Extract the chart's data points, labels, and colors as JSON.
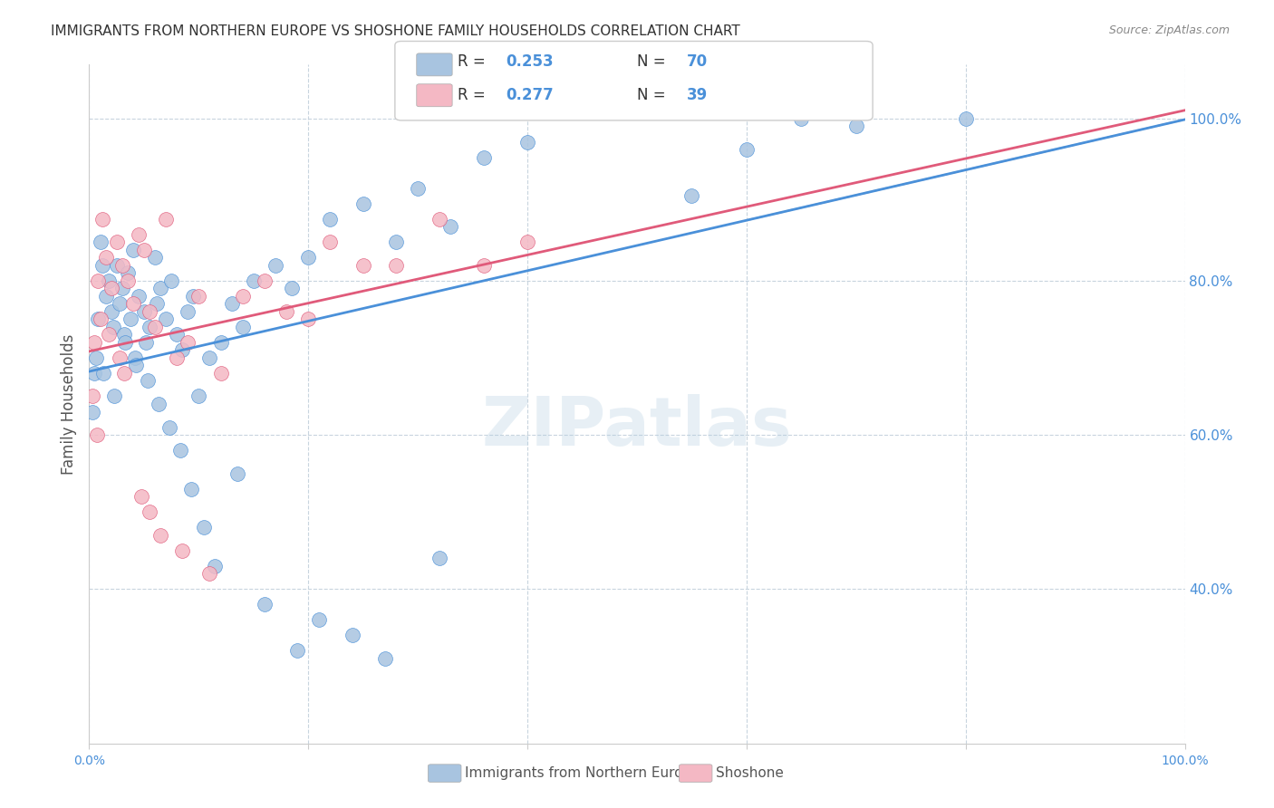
{
  "title": "IMMIGRANTS FROM NORTHERN EUROPE VS SHOSHONE FAMILY HOUSEHOLDS CORRELATION CHART",
  "source": "Source: ZipAtlas.com",
  "ylabel": "Family Households",
  "y_tick_vals": [
    101.0,
    80.0,
    60.0,
    40.0
  ],
  "y_tick_labels": [
    "100.0%",
    "80.0%",
    "60.0%",
    "40.0%"
  ],
  "watermark": "ZIPatlas",
  "legend_label1": "Immigrants from Northern Europe",
  "legend_label2": "Shoshone",
  "r1": "0.253",
  "n1": "70",
  "r2": "0.277",
  "n2": "39",
  "blue_fill": "#a8c4e0",
  "pink_fill": "#f4b8c4",
  "blue_edge": "#4a90d9",
  "pink_edge": "#e05a7a",
  "blue_line": "#4a90d9",
  "pink_line": "#e05a7a",
  "background_color": "#ffffff",
  "grid_color": "#c8d4de",
  "xlim": [
    0,
    100
  ],
  "ylim": [
    20,
    108
  ],
  "blue_x": [
    0.5,
    0.8,
    1.0,
    1.2,
    1.5,
    1.8,
    2.0,
    2.2,
    2.5,
    2.8,
    3.0,
    3.2,
    3.5,
    3.8,
    4.0,
    4.2,
    4.5,
    5.0,
    5.2,
    5.5,
    6.0,
    6.2,
    6.5,
    7.0,
    7.5,
    8.0,
    8.5,
    9.0,
    9.5,
    10.0,
    11.0,
    12.0,
    13.0,
    14.0,
    15.0,
    17.0,
    18.5,
    20.0,
    22.0,
    25.0,
    28.0,
    30.0,
    33.0,
    36.0,
    40.0,
    55.0,
    60.0,
    65.0,
    70.0,
    80.0,
    0.3,
    0.6,
    1.3,
    2.3,
    3.3,
    4.3,
    5.3,
    6.3,
    7.3,
    8.3,
    9.3,
    10.5,
    11.5,
    13.5,
    16.0,
    19.0,
    21.0,
    24.0,
    27.0,
    32.0
  ],
  "blue_y": [
    68.0,
    75.0,
    85.0,
    82.0,
    78.0,
    80.0,
    76.0,
    74.0,
    82.0,
    77.0,
    79.0,
    73.0,
    81.0,
    75.0,
    84.0,
    70.0,
    78.0,
    76.0,
    72.0,
    74.0,
    83.0,
    77.0,
    79.0,
    75.0,
    80.0,
    73.0,
    71.0,
    76.0,
    78.0,
    65.0,
    70.0,
    72.0,
    77.0,
    74.0,
    80.0,
    82.0,
    79.0,
    83.0,
    88.0,
    90.0,
    85.0,
    92.0,
    87.0,
    96.0,
    98.0,
    91.0,
    97.0,
    101.0,
    100.0,
    101.0,
    63.0,
    70.0,
    68.0,
    65.0,
    72.0,
    69.0,
    67.0,
    64.0,
    61.0,
    58.0,
    53.0,
    48.0,
    43.0,
    55.0,
    38.0,
    32.0,
    36.0,
    34.0,
    31.0,
    44.0
  ],
  "pink_x": [
    0.3,
    0.5,
    0.8,
    1.0,
    1.2,
    1.5,
    2.0,
    2.5,
    3.0,
    3.5,
    4.0,
    4.5,
    5.0,
    5.5,
    6.0,
    7.0,
    8.0,
    9.0,
    10.0,
    12.0,
    14.0,
    16.0,
    18.0,
    20.0,
    22.0,
    25.0,
    28.0,
    32.0,
    36.0,
    40.0,
    3.2,
    5.5,
    8.5,
    11.0,
    1.8,
    2.8,
    4.8,
    6.5,
    0.7
  ],
  "pink_y": [
    65.0,
    72.0,
    80.0,
    75.0,
    88.0,
    83.0,
    79.0,
    85.0,
    82.0,
    80.0,
    77.0,
    86.0,
    84.0,
    76.0,
    74.0,
    88.0,
    70.0,
    72.0,
    78.0,
    68.0,
    78.0,
    80.0,
    76.0,
    75.0,
    85.0,
    82.0,
    82.0,
    88.0,
    82.0,
    85.0,
    68.0,
    50.0,
    45.0,
    42.0,
    73.0,
    70.0,
    52.0,
    47.0,
    60.0
  ]
}
